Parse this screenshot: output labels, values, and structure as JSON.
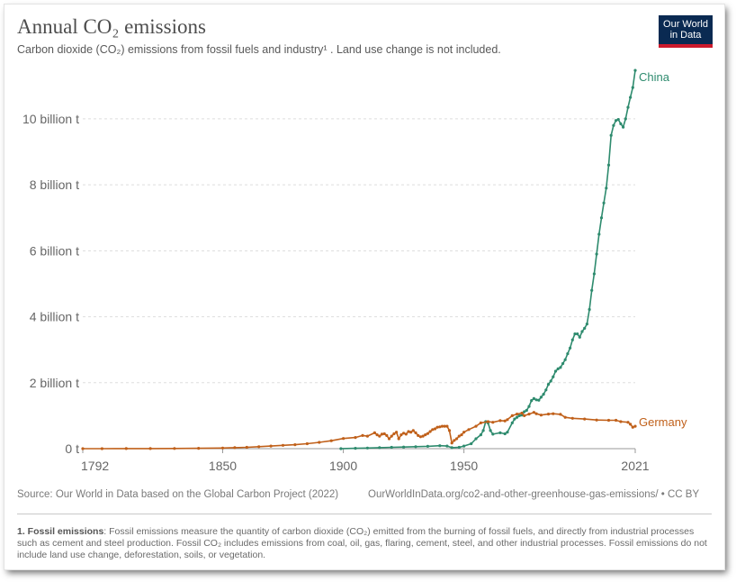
{
  "title": "Annual CO₂ emissions",
  "subtitle": "Carbon dioxide (CO₂) emissions from fossil fuels and industry¹ . Land use change is not included.",
  "logo": {
    "line1": "Our World",
    "line2": "in Data"
  },
  "colors": {
    "China": "#2e8b6e",
    "Germany": "#c0601a",
    "grid": "#dddddd",
    "axis": "#999999"
  },
  "source": "Source: Our World in Data based on the Global Carbon Project (2022)",
  "url": "OurWorldInData.org/co2-and-other-greenhouse-gas-emissions/ • CC BY",
  "footnote": {
    "label": "1. Fossil emissions",
    "text": ": Fossil emissions measure the quantity of carbon dioxide (CO₂) emitted from the burning of fossil fuels, and directly from industrial processes such as cement and steel production. Fossil CO₂ includes emissions from coal, oil, gas, flaring, cement, steel, and other industrial processes. Fossil emissions do not include land use change, deforestation, soils, or vegetation."
  },
  "chart_data": {
    "type": "line",
    "xlim": [
      1792,
      2021
    ],
    "ylim": [
      0,
      11.5
    ],
    "y_ticks": [
      0,
      2,
      4,
      6,
      8,
      10
    ],
    "y_tick_labels": [
      "0 t",
      "2 billion t",
      "4 billion t",
      "6 billion t",
      "8 billion t",
      "10 billion t"
    ],
    "x_ticks": [
      1792,
      1850,
      1900,
      1950,
      2021
    ],
    "x_tick_labels": [
      "1792",
      "1850",
      "1900",
      "1950",
      "2021"
    ],
    "grid": "horizontal dashed",
    "series": [
      {
        "name": "China",
        "x": [
          1899,
          1905,
          1910,
          1915,
          1920,
          1925,
          1930,
          1935,
          1940,
          1943,
          1945,
          1948,
          1950,
          1953,
          1955,
          1957,
          1958,
          1959,
          1960,
          1961,
          1962,
          1965,
          1967,
          1968,
          1970,
          1971,
          1972,
          1973,
          1974,
          1975,
          1976,
          1977,
          1978,
          1979,
          1980,
          1981,
          1982,
          1983,
          1984,
          1985,
          1986,
          1987,
          1988,
          1989,
          1990,
          1991,
          1992,
          1993,
          1994,
          1995,
          1996,
          1997,
          1998,
          1999,
          2000,
          2001,
          2002,
          2003,
          2004,
          2005,
          2006,
          2007,
          2008,
          2009,
          2010,
          2011,
          2012,
          2013,
          2014,
          2015,
          2016,
          2017,
          2018,
          2019,
          2020,
          2021
        ],
        "values": [
          0.0,
          0.01,
          0.02,
          0.03,
          0.04,
          0.05,
          0.06,
          0.07,
          0.09,
          0.08,
          0.03,
          0.04,
          0.08,
          0.15,
          0.3,
          0.42,
          0.55,
          0.82,
          0.78,
          0.55,
          0.44,
          0.48,
          0.45,
          0.5,
          0.78,
          0.9,
          0.95,
          1.0,
          1.02,
          1.12,
          1.16,
          1.28,
          1.46,
          1.52,
          1.48,
          1.47,
          1.56,
          1.65,
          1.78,
          1.95,
          2.05,
          2.18,
          2.35,
          2.42,
          2.46,
          2.58,
          2.7,
          2.88,
          3.05,
          3.3,
          3.48,
          3.48,
          3.38,
          3.55,
          3.65,
          3.78,
          4.22,
          4.8,
          5.3,
          5.9,
          6.5,
          7.0,
          7.45,
          7.9,
          8.6,
          9.5,
          9.8,
          9.95,
          9.98,
          9.85,
          9.75,
          10.0,
          10.35,
          10.65,
          10.95,
          11.47
        ]
      },
      {
        "name": "Germany",
        "x": [
          1792,
          1800,
          1810,
          1820,
          1830,
          1840,
          1850,
          1855,
          1860,
          1865,
          1870,
          1875,
          1880,
          1885,
          1890,
          1895,
          1900,
          1905,
          1908,
          1910,
          1913,
          1914,
          1915,
          1916,
          1917,
          1918,
          1919,
          1920,
          1921,
          1922,
          1923,
          1924,
          1925,
          1926,
          1927,
          1928,
          1929,
          1930,
          1931,
          1932,
          1933,
          1934,
          1935,
          1936,
          1937,
          1938,
          1939,
          1940,
          1941,
          1942,
          1943,
          1944,
          1945,
          1946,
          1947,
          1948,
          1949,
          1950,
          1952,
          1955,
          1957,
          1960,
          1962,
          1965,
          1967,
          1968,
          1970,
          1972,
          1974,
          1975,
          1977,
          1979,
          1980,
          1982,
          1985,
          1987,
          1990,
          1992,
          1995,
          2000,
          2005,
          2010,
          2013,
          2015,
          2018,
          2019,
          2020,
          2021
        ],
        "values": [
          0.0,
          0.0,
          0.002,
          0.004,
          0.006,
          0.01,
          0.02,
          0.03,
          0.04,
          0.06,
          0.08,
          0.1,
          0.12,
          0.15,
          0.19,
          0.24,
          0.31,
          0.34,
          0.4,
          0.38,
          0.48,
          0.42,
          0.38,
          0.44,
          0.45,
          0.4,
          0.3,
          0.38,
          0.45,
          0.5,
          0.3,
          0.42,
          0.47,
          0.44,
          0.52,
          0.5,
          0.55,
          0.48,
          0.4,
          0.36,
          0.38,
          0.42,
          0.46,
          0.52,
          0.58,
          0.6,
          0.65,
          0.66,
          0.68,
          0.68,
          0.68,
          0.55,
          0.17,
          0.25,
          0.3,
          0.38,
          0.42,
          0.5,
          0.58,
          0.68,
          0.78,
          0.82,
          0.8,
          0.85,
          0.84,
          0.88,
          1.0,
          1.05,
          1.08,
          1.0,
          1.05,
          1.1,
          1.06,
          1.02,
          1.05,
          1.06,
          1.04,
          0.95,
          0.92,
          0.9,
          0.87,
          0.86,
          0.86,
          0.82,
          0.8,
          0.74,
          0.65,
          0.68
        ]
      }
    ]
  }
}
